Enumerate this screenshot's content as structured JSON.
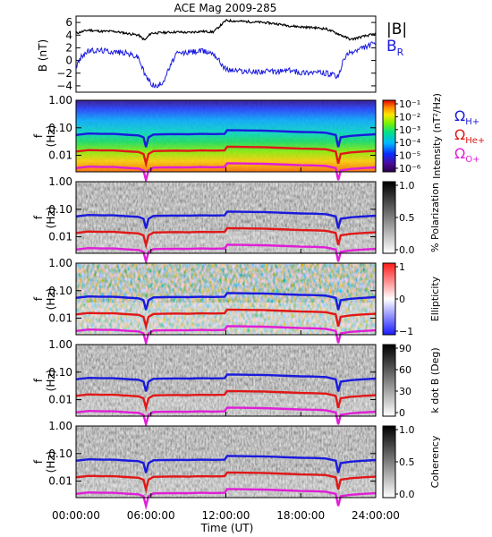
{
  "chart_data": [
    {
      "type": "line",
      "title": "ACE Mag 2009-285",
      "ylabel": "B (nT)",
      "ylim": [
        -5,
        7
      ],
      "yticks": [
        "6",
        "4",
        "2",
        "0",
        "−2",
        "−4"
      ],
      "xlim": [
        0,
        24
      ],
      "series": [
        {
          "name": "|B|",
          "color": "#000000",
          "x": [
            0,
            1,
            2,
            3,
            4,
            5,
            5.5,
            6,
            7,
            8,
            9,
            10,
            11,
            12,
            13,
            14,
            15,
            16,
            17,
            18,
            19,
            20,
            21,
            22,
            23,
            24
          ],
          "y": [
            4.3,
            4.8,
            4.6,
            4.6,
            4.3,
            4.0,
            3.2,
            4.3,
            4.4,
            4.5,
            4.4,
            4.6,
            4.5,
            6.3,
            6.2,
            6.1,
            6.0,
            5.8,
            5.5,
            5.3,
            5.2,
            5.0,
            4.2,
            3.3,
            3.8,
            4.2
          ]
        },
        {
          "name": "B_R",
          "color": "#1a1adc",
          "x": [
            0,
            0.5,
            1,
            2,
            3,
            4,
            5,
            5.5,
            6,
            6.5,
            7,
            8,
            9,
            10,
            11,
            12,
            13,
            14,
            15,
            16,
            17,
            18,
            19,
            20,
            21,
            21.5,
            22,
            23,
            24
          ],
          "y": [
            -1,
            0.8,
            1.5,
            1.6,
            1.4,
            1.2,
            0.5,
            -2.2,
            -3.6,
            -4.2,
            -3.2,
            1.0,
            1.3,
            1.5,
            1.2,
            -1.4,
            -1.6,
            -1.8,
            -1.7,
            -1.8,
            -1.5,
            -1.9,
            -1.8,
            -2.0,
            -2.6,
            0.5,
            1.2,
            2.0,
            2.8
          ]
        }
      ],
      "legend": [
        "|B|",
        "B_R"
      ]
    },
    {
      "type": "heatmap",
      "panel": "intensity",
      "ylabel": "f (Hz)",
      "yticks": [
        "1.00",
        "0.10",
        "0.01"
      ],
      "colorbar": {
        "label": "Intensity (nT²/Hz)",
        "ticks": [
          "10⁻¹",
          "10⁻²",
          "10⁻³",
          "10⁻⁴",
          "10⁻⁵",
          "10⁻⁶"
        ],
        "palette": "rainbow"
      },
      "legend": [
        {
          "label": "Ω_H+",
          "color": "#1a1adc"
        },
        {
          "label": "Ω_He+",
          "color": "#e01818"
        },
        {
          "label": "Ω_O+",
          "color": "#e01ed6"
        }
      ]
    },
    {
      "type": "heatmap",
      "panel": "polarization",
      "ylabel": "f (Hz)",
      "yticks": [
        "1.00",
        "0.10",
        "0.01"
      ],
      "colorbar": {
        "label": "% Polarization",
        "ticks": [
          "1.0",
          "0.5",
          "0.0"
        ],
        "palette": "gray"
      }
    },
    {
      "type": "heatmap",
      "panel": "ellipticity",
      "ylabel": "f (Hz)",
      "yticks": [
        "1.00",
        "0.10",
        "0.01"
      ],
      "colorbar": {
        "label": "Ellipticity",
        "ticks": [
          "1",
          "0",
          "−1"
        ],
        "palette": "redblue"
      }
    },
    {
      "type": "heatmap",
      "panel": "kdotb",
      "ylabel": "f (Hz)",
      "yticks": [
        "1.00",
        "0.10",
        "0.01"
      ],
      "colorbar": {
        "label": "k dot B (Deg)",
        "ticks": [
          "90",
          "60",
          "30",
          "0"
        ],
        "palette": "gray"
      }
    },
    {
      "type": "heatmap",
      "panel": "coherency",
      "ylabel": "f (Hz)",
      "yticks": [
        "1.00",
        "0.10",
        "0.01"
      ],
      "colorbar": {
        "label": "Coherency",
        "ticks": [
          "1.0",
          "0.5",
          "0.0"
        ],
        "palette": "gray"
      }
    }
  ],
  "gyro": {
    "x": [
      0,
      1,
      2,
      3,
      4,
      5,
      5.4,
      5.6,
      5.8,
      6.2,
      7,
      8,
      9,
      10,
      11,
      11.9,
      12.1,
      13,
      14,
      15,
      16,
      17,
      18,
      19,
      20,
      20.8,
      21.0,
      21.2,
      22,
      23,
      24
    ],
    "h_hz": [
      0.055,
      0.062,
      0.06,
      0.06,
      0.056,
      0.053,
      0.045,
      0.02,
      0.045,
      0.057,
      0.058,
      0.059,
      0.058,
      0.06,
      0.059,
      0.06,
      0.082,
      0.081,
      0.08,
      0.079,
      0.076,
      0.073,
      0.07,
      0.069,
      0.066,
      0.055,
      0.02,
      0.045,
      0.051,
      0.055,
      0.058
    ]
  },
  "x_axis": {
    "label": "Time (UT)",
    "ticks": [
      "00:00:00",
      "06:00:00",
      "12:00:00",
      "18:00:00",
      "24:00:00"
    ]
  }
}
